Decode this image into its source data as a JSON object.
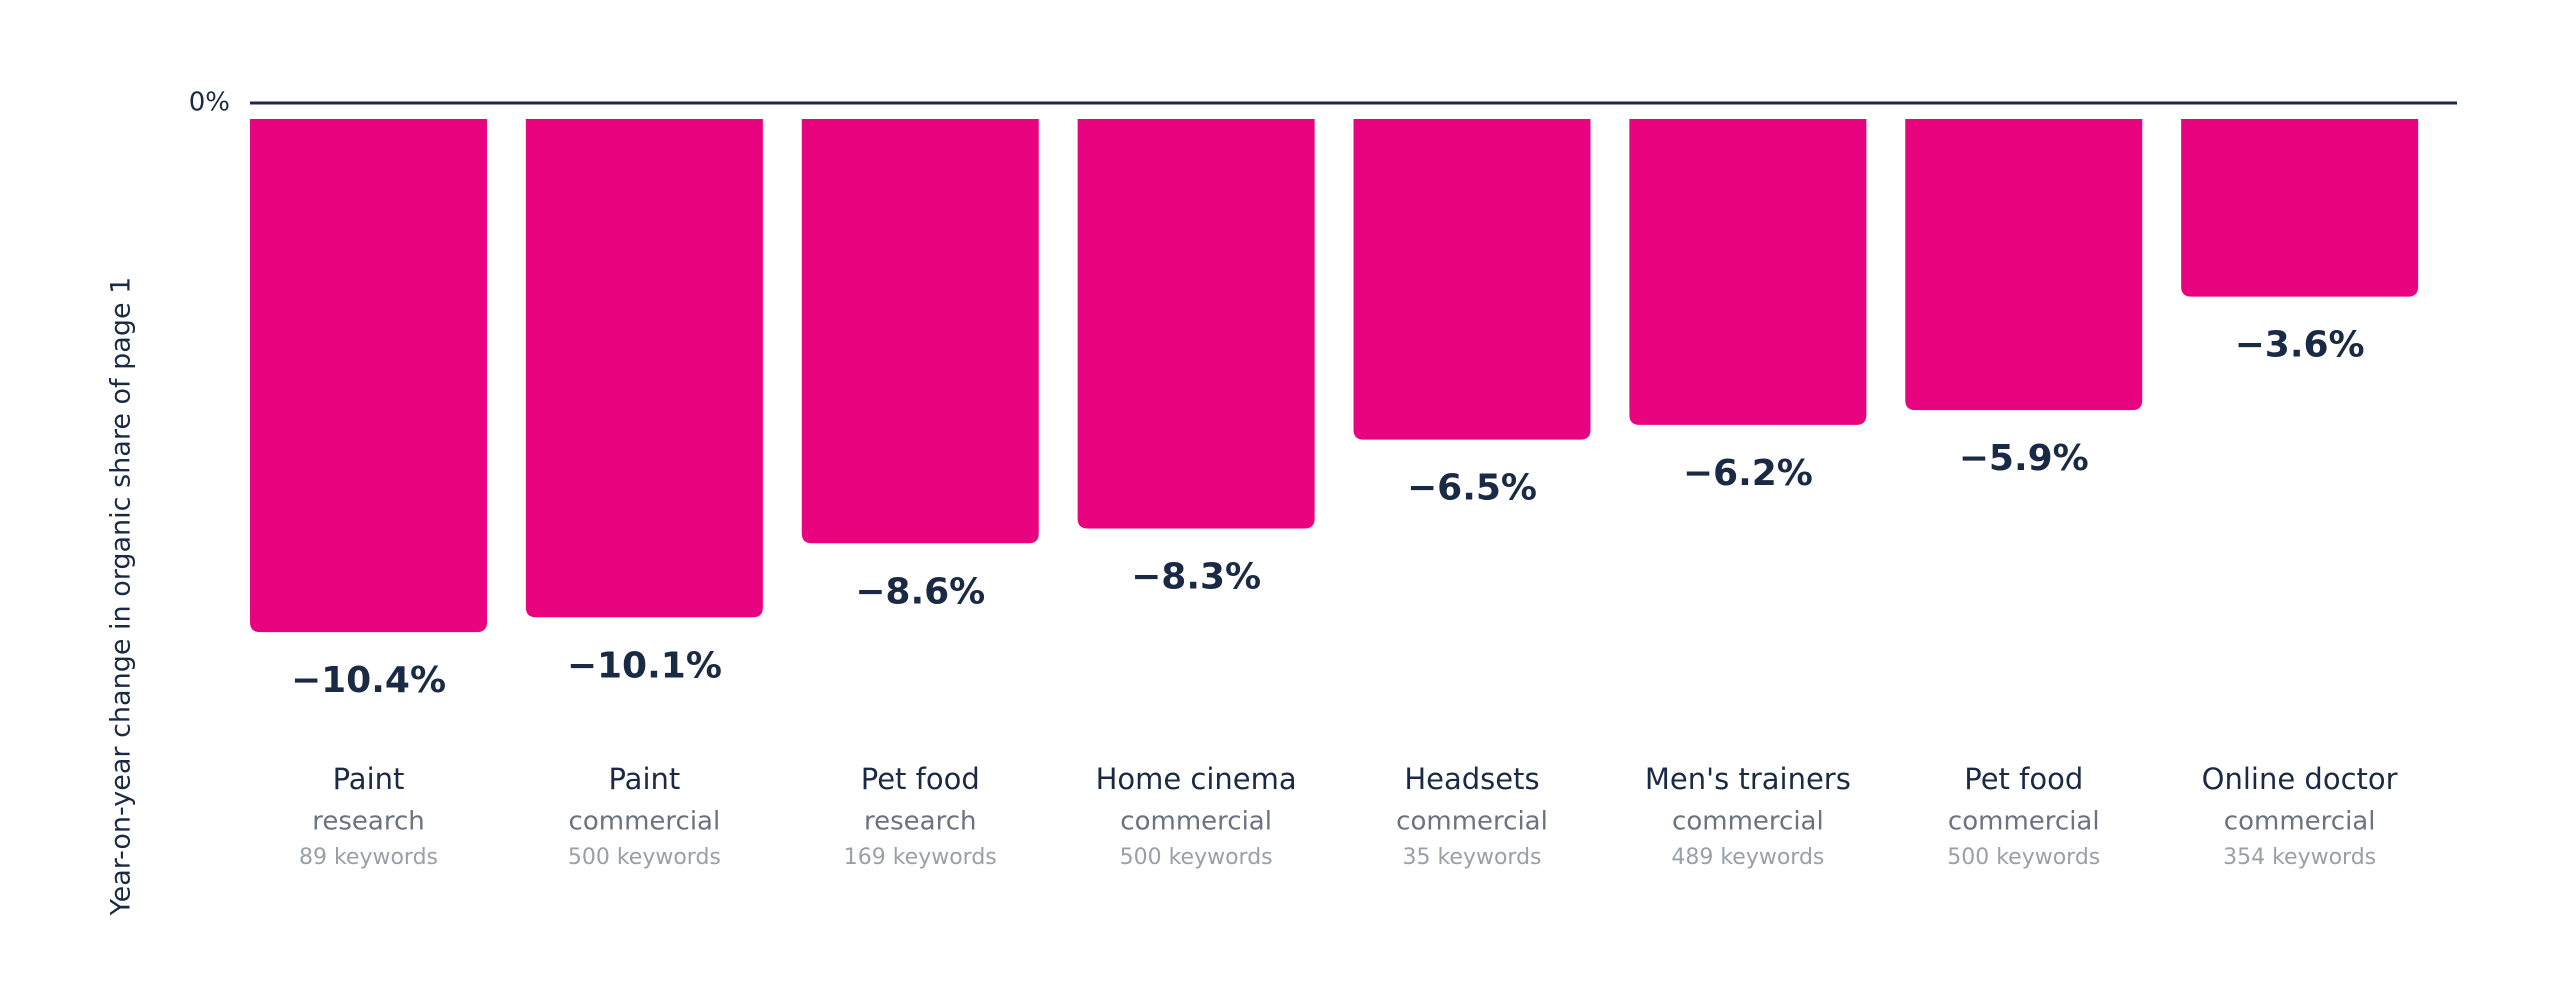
{
  "chart_data": {
    "type": "bar",
    "y_label": "Year-on-year change in organic share of page 1",
    "categories": [
      "Paint",
      "Paint",
      "Pet food",
      "Home cinema",
      "Headsets",
      "Men's trainers",
      "Pet food",
      "Online doctor"
    ],
    "category_types": [
      "research",
      "commercial",
      "research",
      "commercial",
      "commercial",
      "commercial",
      "commercial",
      "commercial"
    ],
    "keyword_counts": [
      "89 keywords",
      "500 keywords",
      "169 keywords",
      "500 keywords",
      "35 keywords",
      "489 keywords",
      "500 keywords",
      "354 keywords"
    ],
    "values": [
      -10.4,
      -10.1,
      -8.6,
      -8.3,
      -6.5,
      -6.2,
      -5.9,
      -3.6
    ],
    "value_labels": [
      "−10.4%",
      "−10.1%",
      "−8.6%",
      "−8.3%",
      "−6.5%",
      "−6.2%",
      "−5.9%",
      "−3.6%"
    ],
    "color": "#e8047e",
    "ylim": [
      -15,
      0
    ],
    "yticks": [
      {
        "value": 0,
        "label": "0%"
      }
    ],
    "grid": true
  }
}
